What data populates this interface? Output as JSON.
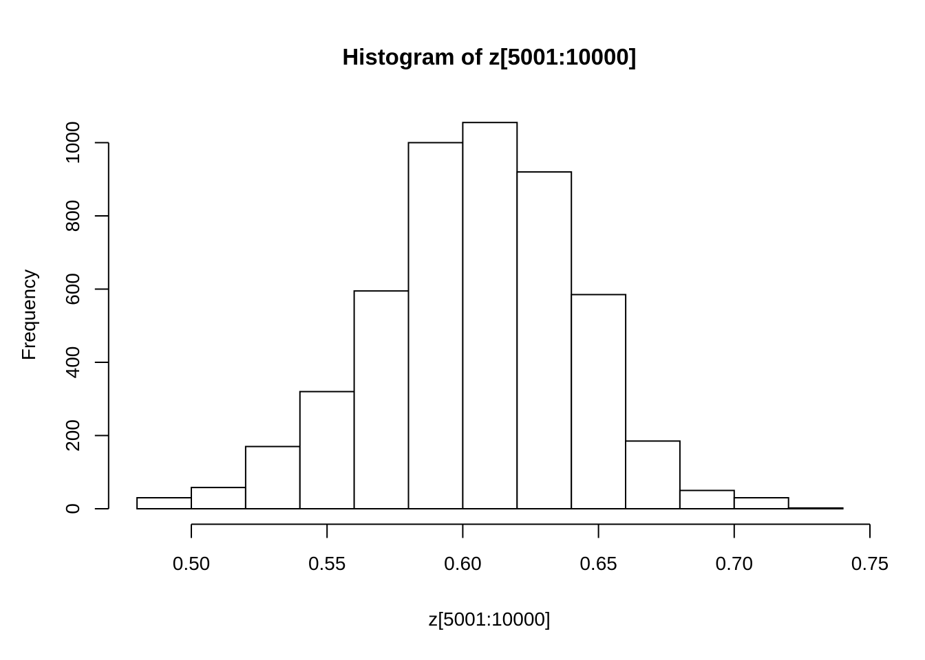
{
  "figure": {
    "background": "#ffffff"
  },
  "chart_data": {
    "type": "bar",
    "subtype": "histogram",
    "title": "Histogram of z[5001:10000]",
    "xlabel": "z[5001:10000]",
    "ylabel": "Frequency",
    "bin_start": 0.48,
    "bin_width": 0.02,
    "bin_edges": [
      0.48,
      0.5,
      0.52,
      0.54,
      0.56,
      0.58,
      0.6,
      0.62,
      0.64,
      0.66,
      0.68,
      0.7,
      0.72,
      0.74
    ],
    "counts": [
      30,
      58,
      170,
      320,
      595,
      1000,
      1055,
      920,
      585,
      185,
      50,
      30,
      2
    ],
    "x_tick_values": [
      0.5,
      0.55,
      0.6,
      0.65,
      0.7,
      0.75
    ],
    "x_tick_labels": [
      "0.50",
      "0.55",
      "0.60",
      "0.65",
      "0.70",
      "0.75"
    ],
    "y_tick_values": [
      0,
      200,
      400,
      600,
      800,
      1000
    ],
    "y_tick_labels": [
      "0",
      "200",
      "400",
      "600",
      "800",
      "1000"
    ],
    "xlim": [
      0.48,
      0.75
    ],
    "ylim": [
      0,
      1055
    ],
    "grid": false,
    "legend": false,
    "bar_fill": "#ffffff",
    "bar_stroke": "#000000",
    "axis_color": "#000000",
    "text_color": "#000000"
  }
}
